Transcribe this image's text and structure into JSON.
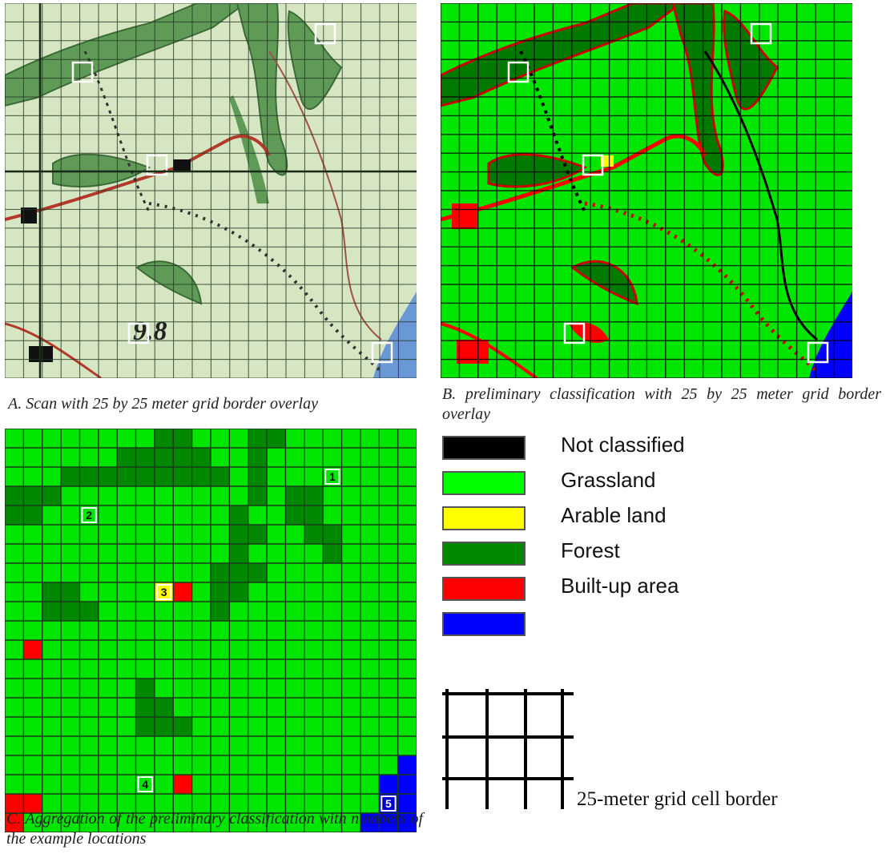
{
  "panels": {
    "scan": {
      "caption": "A. Scan with 25 by 25 meter grid border overlay"
    },
    "classification": {
      "caption": "B. preliminary classification with 25 by 25 meter grid border overlay"
    },
    "aggregation": {
      "caption": "C. Aggregation of the preliminary classification with numbers of the example locations",
      "locations": [
        "1",
        "2",
        "3",
        "4",
        "5"
      ],
      "scan_text": "9.8"
    }
  },
  "legend": {
    "items": [
      {
        "label": "Not classified",
        "color": "#000000"
      },
      {
        "label": "Grassland",
        "color": "#00ff00"
      },
      {
        "label": "Arable land",
        "color": "#ffff00"
      },
      {
        "label": "Forest",
        "color": "#008800"
      },
      {
        "label": "Built-up area",
        "color": "#ff0000"
      },
      {
        "label": "",
        "color": "#0000ff"
      }
    ],
    "grid_label": "25-meter grid cell border"
  }
}
